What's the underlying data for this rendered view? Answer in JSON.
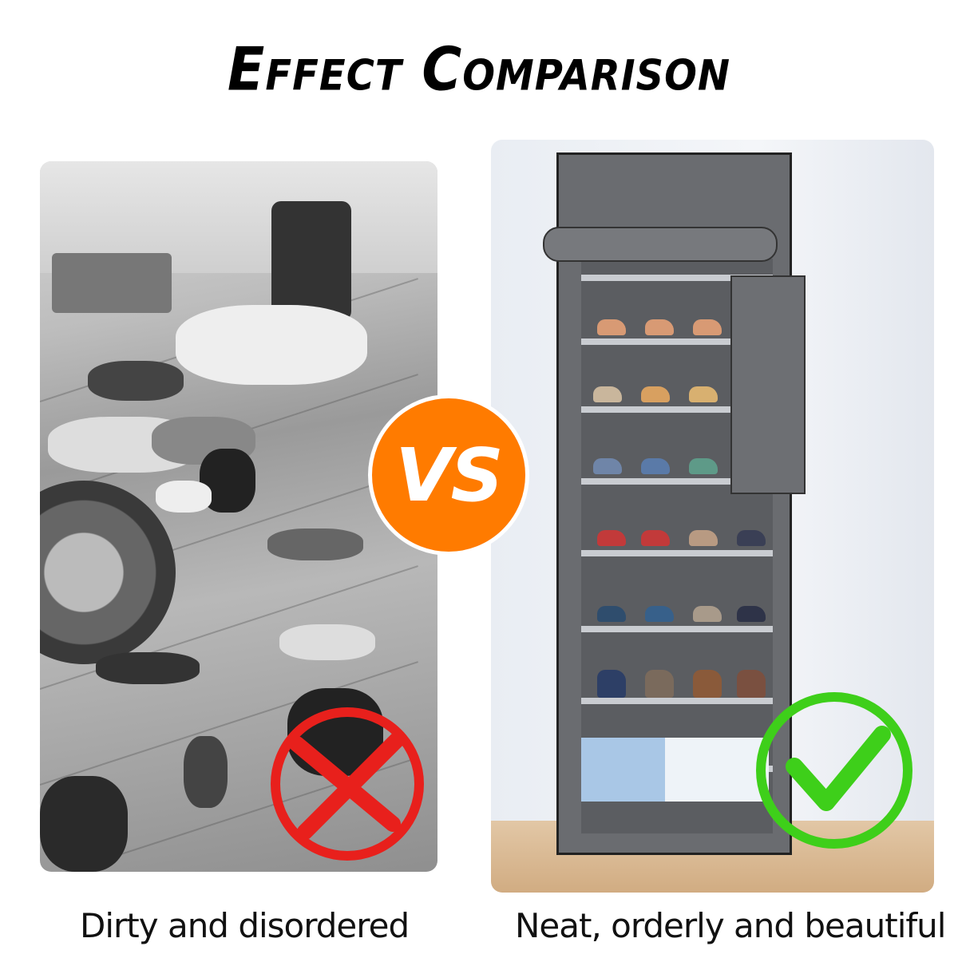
{
  "title": "Effect Comparison",
  "vs_label": "VS",
  "left": {
    "caption": "Dirty and disordered",
    "mark_icon": "red-x-circle",
    "mark_color": "#e8201c"
  },
  "right": {
    "caption": "Neat, orderly and beautiful",
    "mark_icon": "green-check-circle",
    "mark_color": "#3ecf1a"
  },
  "colors": {
    "vs_badge": "#ff7b00",
    "rack": "#6a6c70"
  }
}
